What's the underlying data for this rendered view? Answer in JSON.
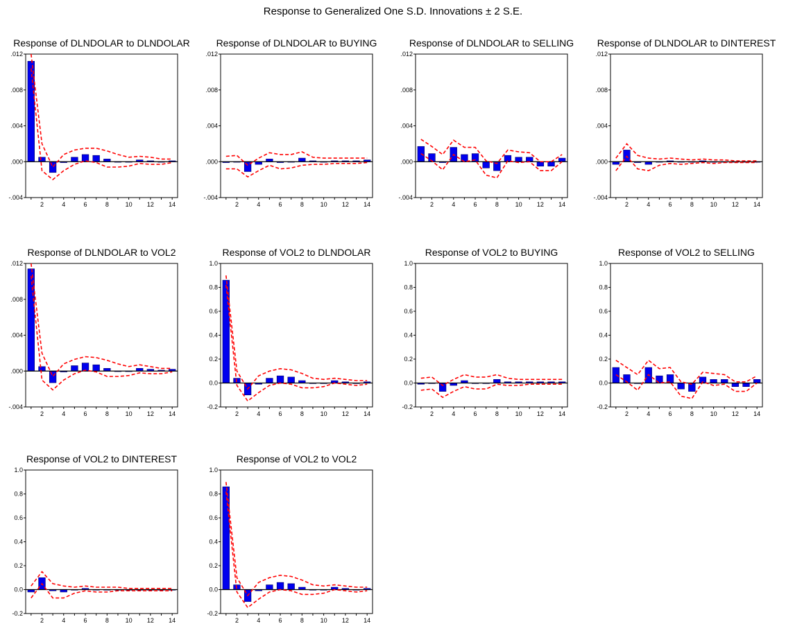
{
  "main_title": "Response to Generalized One S.D. Innovations ± 2 S.E.",
  "colors": {
    "bar": "#0000ee",
    "bar_edge": "#000066",
    "band": "#ff0000",
    "zero_line": "#000000",
    "frame": "#000000"
  },
  "chart_data": [
    {
      "type": "bar",
      "title": "Response of DLNDOLAR to DLNDOLAR",
      "x": [
        1,
        2,
        3,
        4,
        5,
        6,
        7,
        8,
        9,
        10,
        11,
        12,
        13,
        14
      ],
      "x_ticks": [
        2,
        4,
        6,
        8,
        10,
        12,
        14
      ],
      "ylim": [
        -0.004,
        0.012
      ],
      "y_ticks": [
        -0.004,
        0.0,
        0.004,
        0.008,
        0.012
      ],
      "y_tick_labels": [
        "-.004",
        ".000",
        ".004",
        ".008",
        ".012"
      ],
      "values": [
        0.0112,
        0.0005,
        -0.0012,
        -0.0001,
        0.0005,
        0.0008,
        0.0007,
        0.0003,
        0.0,
        0.0,
        0.0002,
        0.0001,
        0.0,
        0.0001
      ],
      "upper": [
        0.012,
        0.002,
        -0.0006,
        0.0008,
        0.0013,
        0.0015,
        0.0015,
        0.0012,
        0.0008,
        0.0005,
        0.0006,
        0.0005,
        0.0003,
        0.0003
      ],
      "lower": [
        0.0104,
        -0.001,
        -0.002,
        -0.001,
        -0.0003,
        0.0001,
        -0.0001,
        -0.0006,
        -0.0006,
        -0.0005,
        -0.0002,
        -0.0003,
        -0.0003,
        -0.0001
      ]
    },
    {
      "type": "bar",
      "title": "Response of DLNDOLAR to BUYING",
      "x": [
        1,
        2,
        3,
        4,
        5,
        6,
        7,
        8,
        9,
        10,
        11,
        12,
        13,
        14
      ],
      "x_ticks": [
        2,
        4,
        6,
        8,
        10,
        12,
        14
      ],
      "ylim": [
        -0.004,
        0.012
      ],
      "y_ticks": [
        -0.004,
        0.0,
        0.004,
        0.008,
        0.012
      ],
      "y_tick_labels": [
        "-.004",
        ".000",
        ".004",
        ".008",
        ".012"
      ],
      "values": [
        -0.0001,
        0.0,
        -0.0011,
        -0.0003,
        0.0003,
        -0.0001,
        0.0,
        0.0004,
        0.0001,
        0.0,
        0.0001,
        0.0001,
        0.0001,
        0.0002
      ],
      "upper": [
        0.0006,
        0.0007,
        -0.0004,
        0.0004,
        0.001,
        0.0008,
        0.0008,
        0.0011,
        0.0005,
        0.0004,
        0.0004,
        0.0004,
        0.0004,
        0.0004
      ],
      "lower": [
        -0.0008,
        -0.0008,
        -0.0017,
        -0.001,
        -0.0004,
        -0.0008,
        -0.0007,
        -0.0004,
        -0.0003,
        -0.0003,
        -0.0002,
        -0.0002,
        -0.0002,
        -0.0001
      ]
    },
    {
      "type": "bar",
      "title": "Response of DLNDOLAR to SELLING",
      "x": [
        1,
        2,
        3,
        4,
        5,
        6,
        7,
        8,
        9,
        10,
        11,
        12,
        13,
        14
      ],
      "x_ticks": [
        2,
        4,
        6,
        8,
        10,
        12,
        14
      ],
      "ylim": [
        -0.004,
        0.012
      ],
      "y_ticks": [
        -0.004,
        0.0,
        0.004,
        0.008,
        0.012
      ],
      "y_tick_labels": [
        "-.004",
        ".000",
        ".004",
        ".008",
        ".012"
      ],
      "values": [
        0.0017,
        0.0009,
        -0.0001,
        0.0016,
        0.0008,
        0.0009,
        -0.0007,
        -0.001,
        0.0007,
        0.0005,
        0.0005,
        -0.0005,
        -0.0005,
        0.0004
      ],
      "upper": [
        0.0025,
        0.0017,
        0.0008,
        0.0024,
        0.0016,
        0.0016,
        0.0001,
        -0.0002,
        0.0013,
        0.0011,
        0.001,
        0.0,
        0.0,
        0.0008
      ],
      "lower": [
        0.0009,
        0.0001,
        -0.0009,
        0.0008,
        0.0,
        0.0002,
        -0.0015,
        -0.0018,
        0.0001,
        -0.0001,
        0.0,
        -0.001,
        -0.001,
        0.0
      ]
    },
    {
      "type": "bar",
      "title": "Response of DLNDOLAR to DINTEREST",
      "x": [
        1,
        2,
        3,
        4,
        5,
        6,
        7,
        8,
        9,
        10,
        11,
        12,
        13,
        14
      ],
      "x_ticks": [
        2,
        4,
        6,
        8,
        10,
        12,
        14
      ],
      "ylim": [
        -0.004,
        0.012
      ],
      "y_ticks": [
        -0.004,
        0.0,
        0.004,
        0.008,
        0.012
      ],
      "y_tick_labels": [
        "-.004",
        ".000",
        ".004",
        ".008",
        ".012"
      ],
      "values": [
        -0.0003,
        0.0013,
        -0.0001,
        -0.0003,
        0.0,
        0.0001,
        0.0,
        0.0,
        0.0001,
        0.0,
        0.0,
        0.0,
        0.0,
        0.0
      ],
      "upper": [
        0.0004,
        0.002,
        0.0007,
        0.0004,
        0.0003,
        0.0004,
        0.0003,
        0.0002,
        0.0003,
        0.0002,
        0.0002,
        0.0001,
        0.0001,
        0.0001
      ],
      "lower": [
        -0.001,
        0.0006,
        -0.0008,
        -0.001,
        -0.0004,
        -0.0002,
        -0.0003,
        -0.0002,
        -0.0001,
        -0.0002,
        -0.0001,
        -0.0001,
        -0.0001,
        -0.0001
      ]
    },
    {
      "type": "bar",
      "title": "Response of DLNDOLAR to VOL2",
      "x": [
        1,
        2,
        3,
        4,
        5,
        6,
        7,
        8,
        9,
        10,
        11,
        12,
        13,
        14
      ],
      "x_ticks": [
        2,
        4,
        6,
        8,
        10,
        12,
        14
      ],
      "ylim": [
        -0.004,
        0.012
      ],
      "y_ticks": [
        -0.004,
        0.0,
        0.004,
        0.008,
        0.012
      ],
      "y_tick_labels": [
        "-.004",
        ".000",
        ".004",
        ".008",
        ".012"
      ],
      "values": [
        0.0114,
        0.0005,
        -0.0013,
        -0.0001,
        0.0006,
        0.0009,
        0.0007,
        0.0003,
        0.0,
        0.0,
        0.0003,
        0.0002,
        0.0001,
        0.0002
      ],
      "upper": [
        0.012,
        0.002,
        -0.0006,
        0.0008,
        0.0013,
        0.0016,
        0.0015,
        0.0012,
        0.0008,
        0.0005,
        0.0007,
        0.0005,
        0.0003,
        0.0003
      ],
      "lower": [
        0.0106,
        -0.001,
        -0.0021,
        -0.001,
        -0.0003,
        0.0001,
        -0.0001,
        -0.0006,
        -0.0006,
        -0.0005,
        -0.0002,
        -0.0003,
        -0.0003,
        -0.0001
      ]
    },
    {
      "type": "bar",
      "title": "Response of VOL2 to DLNDOLAR",
      "x": [
        1,
        2,
        3,
        4,
        5,
        6,
        7,
        8,
        9,
        10,
        11,
        12,
        13,
        14
      ],
      "x_ticks": [
        2,
        4,
        6,
        8,
        10,
        12,
        14
      ],
      "ylim": [
        -0.2,
        1.0
      ],
      "y_ticks": [
        -0.2,
        0.0,
        0.2,
        0.4,
        0.6,
        0.8,
        1.0
      ],
      "y_tick_labels": [
        "-0.2",
        "0.0",
        "0.2",
        "0.4",
        "0.6",
        "0.8",
        "1.0"
      ],
      "values": [
        0.86,
        0.04,
        -0.1,
        -0.01,
        0.04,
        0.06,
        0.05,
        0.02,
        0.0,
        0.0,
        0.02,
        0.01,
        0.0,
        0.01
      ],
      "upper": [
        0.9,
        0.1,
        -0.05,
        0.06,
        0.1,
        0.12,
        0.11,
        0.08,
        0.04,
        0.03,
        0.04,
        0.03,
        0.02,
        0.02
      ],
      "lower": [
        0.82,
        -0.02,
        -0.15,
        -0.08,
        -0.02,
        0.0,
        -0.01,
        -0.04,
        -0.04,
        -0.03,
        0.0,
        -0.01,
        -0.02,
        -0.01
      ]
    },
    {
      "type": "bar",
      "title": "Response of VOL2 to BUYING",
      "x": [
        1,
        2,
        3,
        4,
        5,
        6,
        7,
        8,
        9,
        10,
        11,
        12,
        13,
        14
      ],
      "x_ticks": [
        2,
        4,
        6,
        8,
        10,
        12,
        14
      ],
      "ylim": [
        -0.2,
        1.0
      ],
      "y_ticks": [
        -0.2,
        0.0,
        0.2,
        0.4,
        0.6,
        0.8,
        1.0
      ],
      "y_tick_labels": [
        "-0.2",
        "0.0",
        "0.2",
        "0.4",
        "0.6",
        "0.8",
        "1.0"
      ],
      "values": [
        -0.01,
        0.0,
        -0.07,
        -0.02,
        0.02,
        0.0,
        0.0,
        0.03,
        0.01,
        0.01,
        0.01,
        0.01,
        0.01,
        0.01
      ],
      "upper": [
        0.04,
        0.05,
        -0.02,
        0.03,
        0.07,
        0.05,
        0.05,
        0.07,
        0.04,
        0.03,
        0.03,
        0.03,
        0.03,
        0.03
      ],
      "lower": [
        -0.06,
        -0.05,
        -0.12,
        -0.07,
        -0.03,
        -0.05,
        -0.05,
        -0.01,
        -0.02,
        -0.02,
        -0.01,
        -0.01,
        -0.01,
        -0.01
      ]
    },
    {
      "type": "bar",
      "title": "Response of VOL2 to SELLING",
      "x": [
        1,
        2,
        3,
        4,
        5,
        6,
        7,
        8,
        9,
        10,
        11,
        12,
        13,
        14
      ],
      "x_ticks": [
        2,
        4,
        6,
        8,
        10,
        12,
        14
      ],
      "ylim": [
        -0.2,
        1.0
      ],
      "y_ticks": [
        -0.2,
        0.0,
        0.2,
        0.4,
        0.6,
        0.8,
        1.0
      ],
      "y_tick_labels": [
        "-0.2",
        "0.0",
        "0.2",
        "0.4",
        "0.6",
        "0.8",
        "1.0"
      ],
      "values": [
        0.13,
        0.07,
        0.0,
        0.13,
        0.06,
        0.07,
        -0.05,
        -0.07,
        0.05,
        0.03,
        0.03,
        -0.03,
        -0.03,
        0.03
      ],
      "upper": [
        0.19,
        0.13,
        0.07,
        0.19,
        0.12,
        0.13,
        0.01,
        -0.01,
        0.09,
        0.08,
        0.07,
        0.01,
        0.01,
        0.06
      ],
      "lower": [
        0.07,
        0.01,
        -0.06,
        0.07,
        0.0,
        0.01,
        -0.11,
        -0.13,
        0.01,
        -0.02,
        -0.01,
        -0.07,
        -0.07,
        0.0
      ]
    },
    {
      "type": "bar",
      "title": "Response of VOL2 to DINTEREST",
      "x": [
        1,
        2,
        3,
        4,
        5,
        6,
        7,
        8,
        9,
        10,
        11,
        12,
        13,
        14
      ],
      "x_ticks": [
        2,
        4,
        6,
        8,
        10,
        12,
        14
      ],
      "ylim": [
        -0.2,
        1.0
      ],
      "y_ticks": [
        -0.2,
        0.0,
        0.2,
        0.4,
        0.6,
        0.8,
        1.0
      ],
      "y_tick_labels": [
        "-0.2",
        "0.0",
        "0.2",
        "0.4",
        "0.6",
        "0.8",
        "1.0"
      ],
      "values": [
        -0.02,
        0.1,
        -0.01,
        -0.02,
        0.0,
        0.01,
        0.0,
        0.0,
        0.0,
        0.0,
        0.0,
        0.0,
        0.0,
        0.0
      ],
      "upper": [
        0.03,
        0.15,
        0.05,
        0.03,
        0.02,
        0.03,
        0.02,
        0.02,
        0.02,
        0.01,
        0.01,
        0.01,
        0.01,
        0.01
      ],
      "lower": [
        -0.07,
        0.05,
        -0.07,
        -0.07,
        -0.03,
        -0.01,
        -0.02,
        -0.02,
        -0.01,
        -0.01,
        -0.01,
        -0.01,
        -0.01,
        -0.01
      ]
    },
    {
      "type": "bar",
      "title": "Response of VOL2 to VOL2",
      "x": [
        1,
        2,
        3,
        4,
        5,
        6,
        7,
        8,
        9,
        10,
        11,
        12,
        13,
        14
      ],
      "x_ticks": [
        2,
        4,
        6,
        8,
        10,
        12,
        14
      ],
      "ylim": [
        -0.2,
        1.0
      ],
      "y_ticks": [
        -0.2,
        0.0,
        0.2,
        0.4,
        0.6,
        0.8,
        1.0
      ],
      "y_tick_labels": [
        "-0.2",
        "0.0",
        "0.2",
        "0.4",
        "0.6",
        "0.8",
        "1.0"
      ],
      "values": [
        0.86,
        0.04,
        -0.1,
        -0.01,
        0.04,
        0.06,
        0.05,
        0.02,
        0.0,
        0.0,
        0.02,
        0.01,
        0.0,
        0.01
      ],
      "upper": [
        0.9,
        0.1,
        -0.05,
        0.06,
        0.1,
        0.12,
        0.11,
        0.08,
        0.04,
        0.03,
        0.04,
        0.03,
        0.02,
        0.02
      ],
      "lower": [
        0.82,
        -0.02,
        -0.15,
        -0.08,
        -0.02,
        0.0,
        -0.01,
        -0.04,
        -0.04,
        -0.03,
        0.0,
        -0.01,
        -0.02,
        -0.01
      ]
    }
  ]
}
